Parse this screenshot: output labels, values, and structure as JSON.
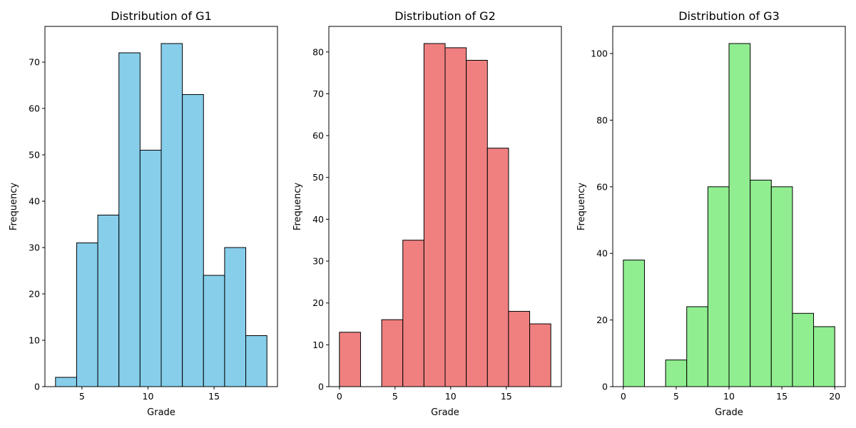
{
  "chart_data": [
    {
      "type": "bar",
      "title": "Distribution of G1",
      "xlabel": "Grade",
      "ylabel": "Frequency",
      "color": "#87CEEB",
      "edge_color": "#000000",
      "bin_edges": [
        3,
        4.6,
        6.2,
        7.8,
        9.4,
        11,
        12.6,
        14.2,
        15.8,
        17.4,
        19
      ],
      "values": [
        2,
        31,
        37,
        72,
        51,
        74,
        63,
        24,
        30,
        11
      ],
      "xlim": [
        2.2,
        19.8
      ],
      "ylim": [
        0,
        77.7
      ],
      "xticks": [
        5,
        10,
        15
      ],
      "yticks": [
        0,
        10,
        20,
        30,
        40,
        50,
        60,
        70
      ]
    },
    {
      "type": "bar",
      "title": "Distribution of G2",
      "xlabel": "Grade",
      "ylabel": "Frequency",
      "color": "#F08080",
      "edge_color": "#000000",
      "bin_edges": [
        0,
        1.9,
        3.8,
        5.7,
        7.6,
        9.5,
        11.4,
        13.3,
        15.2,
        17.1,
        19
      ],
      "values": [
        13,
        0,
        16,
        35,
        82,
        81,
        78,
        57,
        18,
        15
      ],
      "xlim": [
        -0.95,
        19.95
      ],
      "ylim": [
        0,
        86.1
      ],
      "xticks": [
        0,
        5,
        10,
        15
      ],
      "yticks": [
        0,
        10,
        20,
        30,
        40,
        50,
        60,
        70,
        80
      ]
    },
    {
      "type": "bar",
      "title": "Distribution of G3",
      "xlabel": "Grade",
      "ylabel": "Frequency",
      "color": "#90EE90",
      "edge_color": "#000000",
      "bin_edges": [
        0,
        2,
        4,
        6,
        8,
        10,
        12,
        14,
        16,
        18,
        20
      ],
      "values": [
        38,
        0,
        8,
        24,
        60,
        103,
        62,
        60,
        22,
        18
      ],
      "xlim": [
        -1,
        21
      ],
      "ylim": [
        0,
        108.15
      ],
      "xticks": [
        0,
        5,
        10,
        15,
        20
      ],
      "yticks": [
        0,
        20,
        40,
        60,
        80,
        100
      ]
    }
  ]
}
